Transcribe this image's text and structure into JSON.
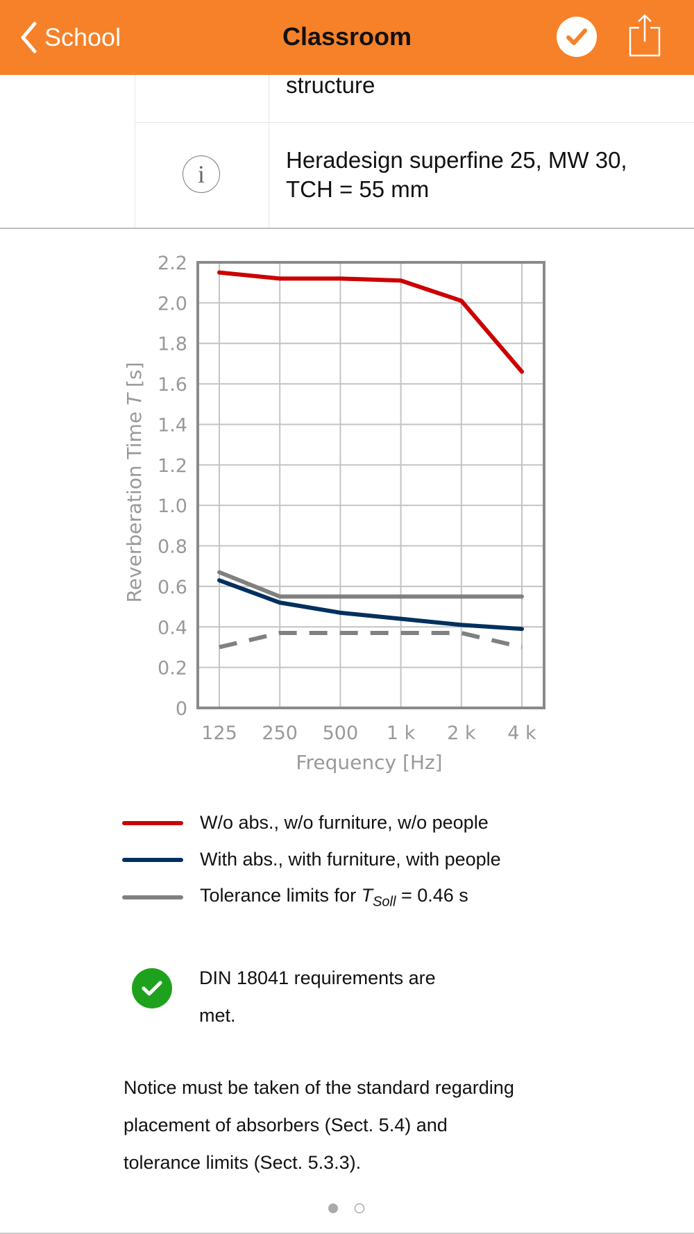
{
  "header": {
    "back_label": "School",
    "title": "Classroom",
    "accent_color": "#F68128",
    "icons": [
      "chevron-left-icon",
      "checkmark-circle-icon",
      "share-icon"
    ]
  },
  "table": {
    "row1_text": "structure",
    "row2_line1": "Heradesign superfine 25, MW 30,",
    "row2_line2": "TCH = 55 mm",
    "row2_icon": "info-icon",
    "info_glyph": "i"
  },
  "chart_data": {
    "type": "line",
    "xlabel": "Frequency [Hz]",
    "ylabel_prefix": "Reverberation Time ",
    "ylabel_var": "T",
    "ylabel_suffix": " [s]",
    "categories": [
      "125",
      "250",
      "500",
      "1 k",
      "2 k",
      "4 k"
    ],
    "yticks": [
      "0",
      "0.2",
      "0.4",
      "0.6",
      "0.8",
      "1.0",
      "1.2",
      "1.4",
      "1.6",
      "1.8",
      "2.0",
      "2.2"
    ],
    "ylim": [
      0,
      2.2
    ],
    "grid": true,
    "series": [
      {
        "name": "W/o abs., w/o furniture, w/o people",
        "color": "#CC0000",
        "dashed": false,
        "values": [
          2.15,
          2.12,
          2.12,
          2.11,
          2.01,
          1.66
        ]
      },
      {
        "name": "With abs., with furniture, with people",
        "color": "#00305E",
        "dashed": false,
        "values": [
          0.63,
          0.52,
          0.47,
          0.44,
          0.41,
          0.39
        ]
      },
      {
        "name": "Tolerance limit upper",
        "color": "#808080",
        "dashed": false,
        "values": [
          0.67,
          0.55,
          0.55,
          0.55,
          0.55,
          0.55
        ]
      },
      {
        "name": "Tolerance limit lower",
        "color": "#808080",
        "dashed": true,
        "values": [
          0.3,
          0.37,
          0.37,
          0.37,
          0.37,
          0.3
        ]
      }
    ]
  },
  "legend": {
    "item1": "W/o abs., w/o furniture, w/o people",
    "item2": "With abs., with furniture, with people",
    "item3_prefix": "Tolerance limits for ",
    "item3_var": "T",
    "item3_sub": "Soll",
    "item3_suffix": " = 0.46 s",
    "colors": [
      "#CC0000",
      "#00305E",
      "#808080"
    ]
  },
  "result": {
    "line1": "DIN 18041 requirements are",
    "line2": "met.",
    "color": "#1EA21E"
  },
  "notice": {
    "line1": "Notice must be taken of the standard regarding",
    "line2": "placement of absorbers (Sect. 5.4) and",
    "line3": "tolerance limits (Sect. 5.3.3)."
  },
  "pager": {
    "current": 1,
    "total": 2
  }
}
